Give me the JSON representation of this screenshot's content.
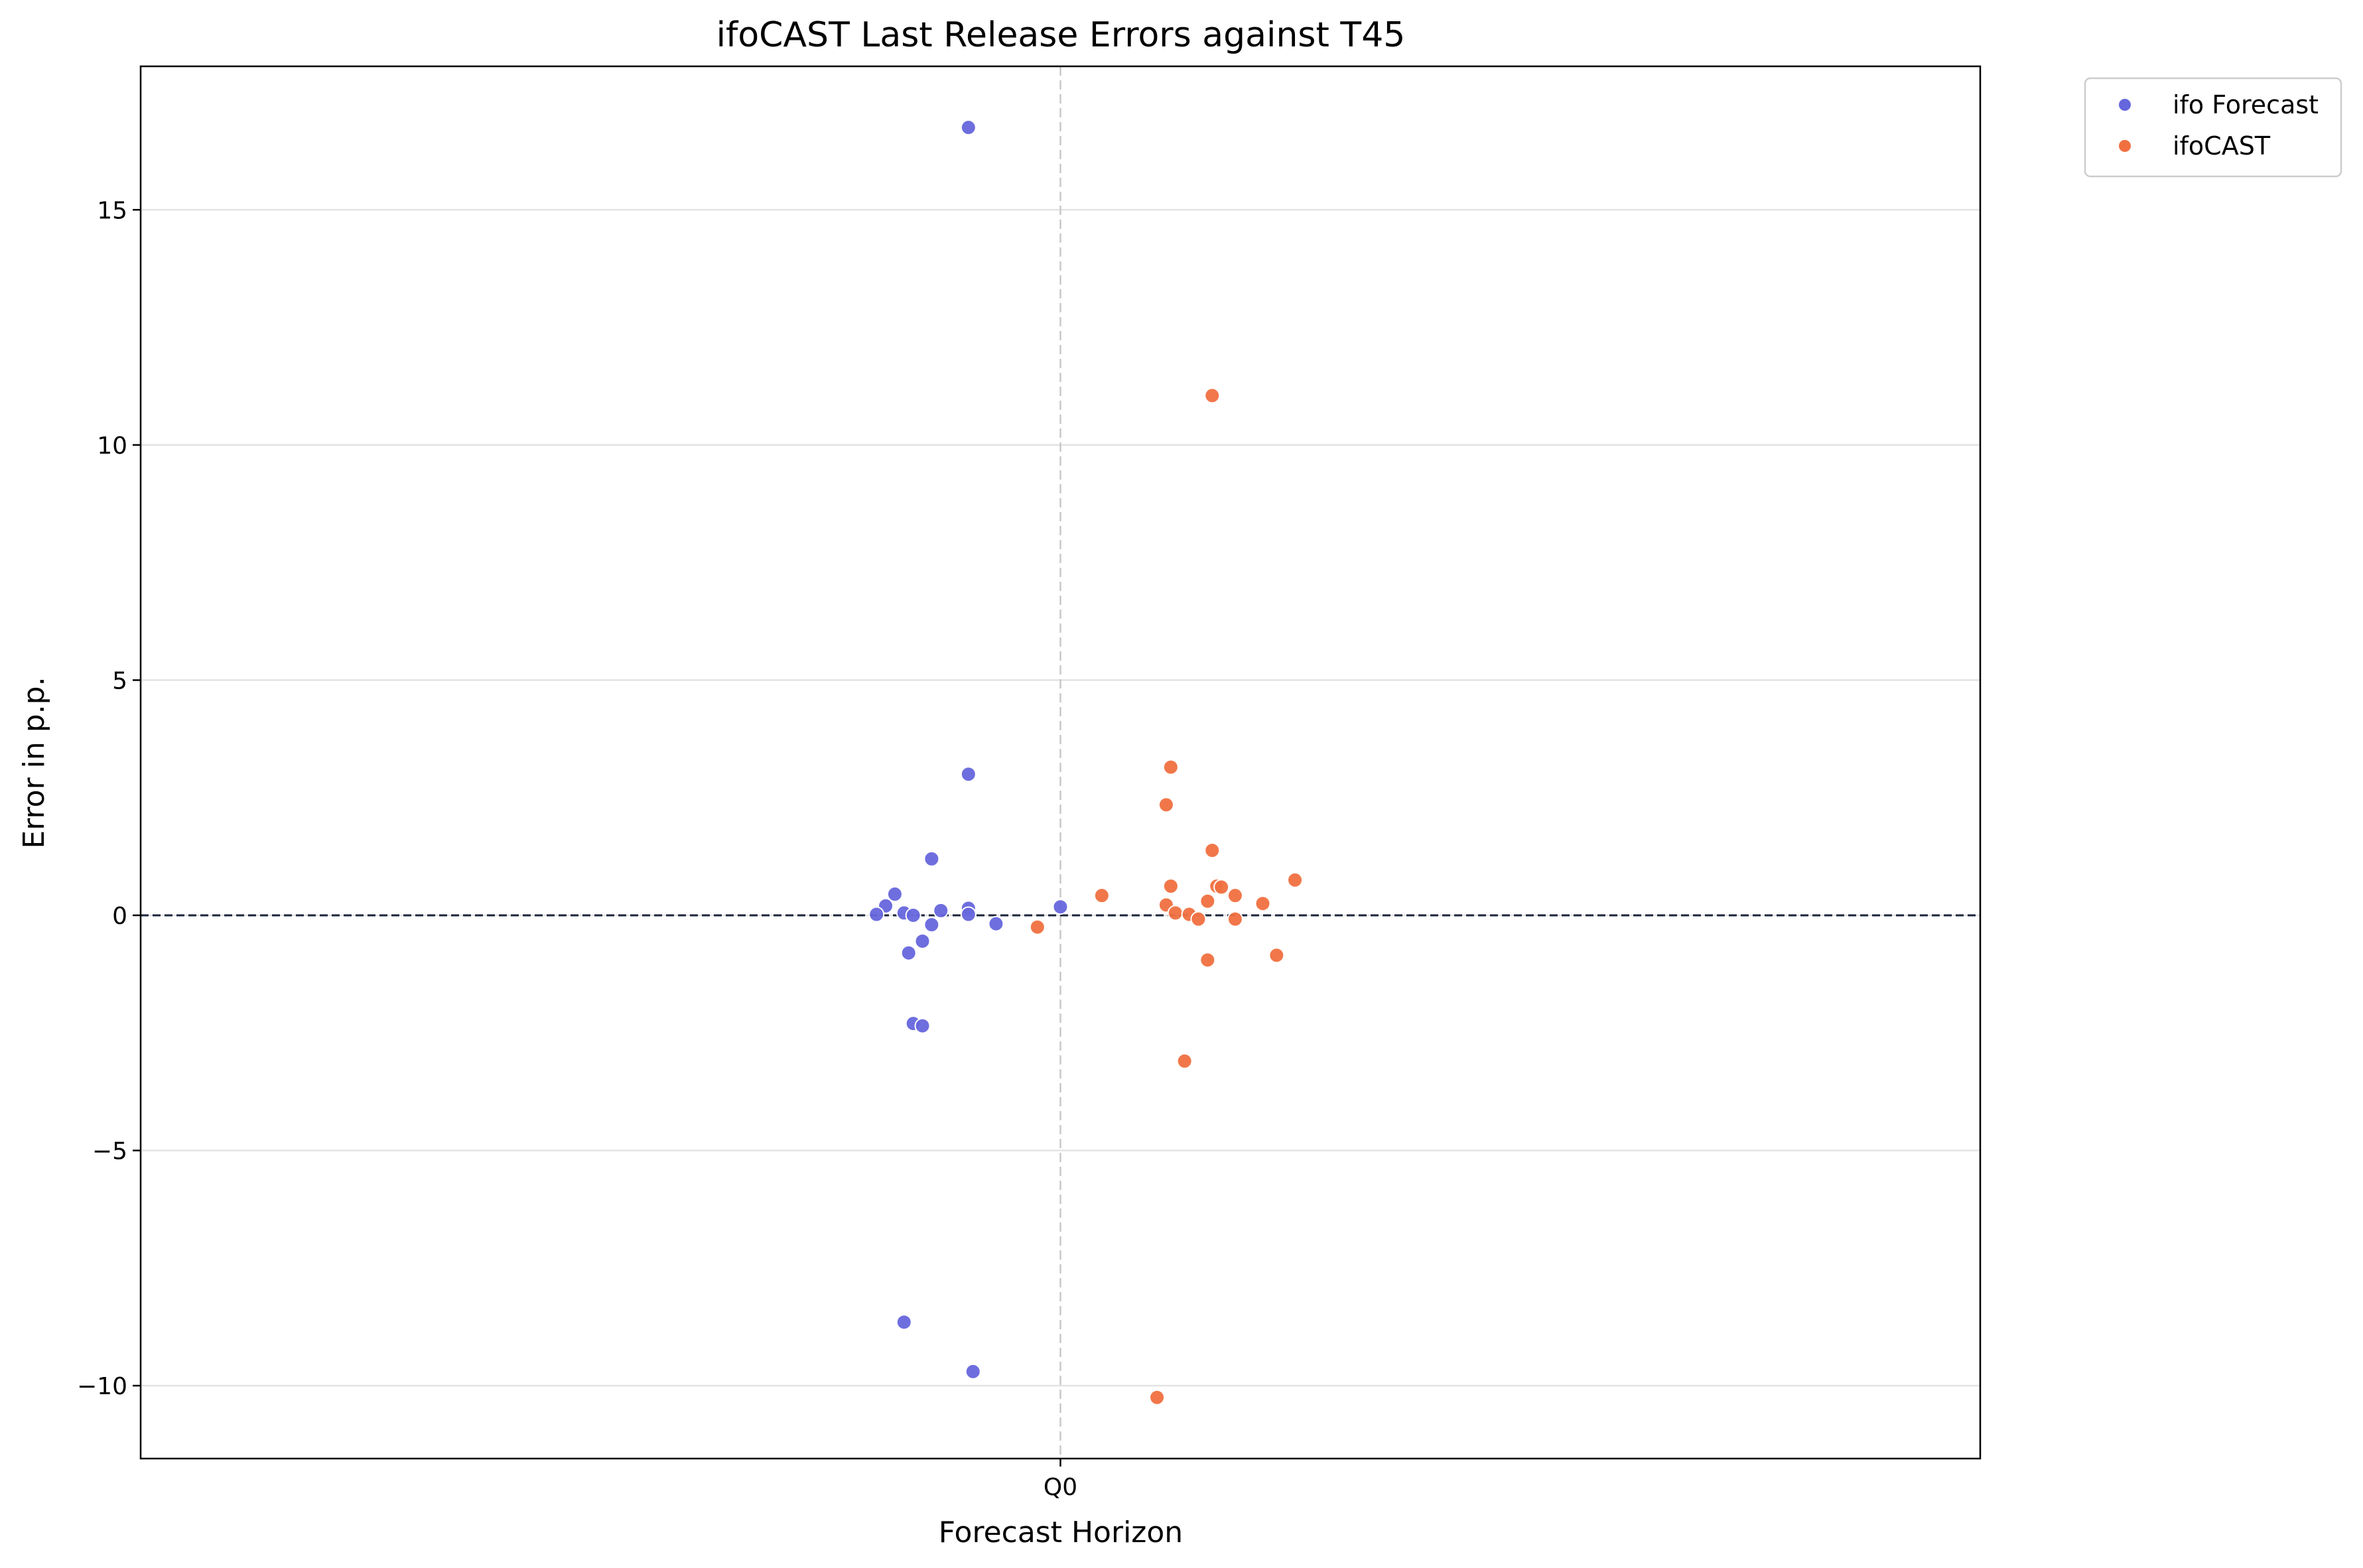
{
  "chart_data": {
    "type": "scatter",
    "title": "ifoCAST Last Release Errors against T45",
    "xlabel": "Forecast Horizon",
    "ylabel": "Error in p.p.",
    "categories": [
      "Q0"
    ],
    "ylim": [
      -11.55,
      18.05
    ],
    "yticks": [
      -10,
      -5,
      0,
      5,
      10,
      15
    ],
    "ytick_labels": [
      "−10",
      "−5",
      "0",
      "5",
      "10",
      "15"
    ],
    "grid": "horizontal",
    "zero_line": true,
    "legend_position": "outside-top-right",
    "series": [
      {
        "name": "ifo Forecast",
        "color": "#6666dd",
        "points": [
          {
            "x": -0.1,
            "y": 16.75
          },
          {
            "x": -0.1,
            "y": 3.0
          },
          {
            "x": -0.14,
            "y": 1.2
          },
          {
            "x": -0.18,
            "y": 0.45
          },
          {
            "x": -0.19,
            "y": 0.2
          },
          {
            "x": -0.2,
            "y": 0.02
          },
          {
            "x": -0.17,
            "y": 0.05
          },
          {
            "x": -0.16,
            "y": 0.0
          },
          {
            "x": -0.13,
            "y": 0.1
          },
          {
            "x": -0.1,
            "y": 0.15
          },
          {
            "x": -0.1,
            "y": 0.02
          },
          {
            "x": -0.07,
            "y": -0.18
          },
          {
            "x": -0.14,
            "y": -0.2
          },
          {
            "x": -0.15,
            "y": -0.55
          },
          {
            "x": -0.165,
            "y": -0.8
          },
          {
            "x": 0.0,
            "y": 0.18
          },
          {
            "x": -0.16,
            "y": -2.3
          },
          {
            "x": -0.15,
            "y": -2.35
          },
          {
            "x": -0.17,
            "y": -8.65
          },
          {
            "x": -0.095,
            "y": -9.7
          }
        ]
      },
      {
        "name": "ifoCAST",
        "color": "#f07040",
        "points": [
          {
            "x": 0.165,
            "y": 11.05
          },
          {
            "x": 0.12,
            "y": 3.15
          },
          {
            "x": 0.115,
            "y": 2.35
          },
          {
            "x": 0.165,
            "y": 1.38
          },
          {
            "x": 0.255,
            "y": 0.75
          },
          {
            "x": 0.12,
            "y": 0.62
          },
          {
            "x": 0.17,
            "y": 0.62
          },
          {
            "x": 0.175,
            "y": 0.6
          },
          {
            "x": 0.045,
            "y": 0.42
          },
          {
            "x": 0.19,
            "y": 0.42
          },
          {
            "x": 0.16,
            "y": 0.3
          },
          {
            "x": 0.22,
            "y": 0.25
          },
          {
            "x": 0.115,
            "y": 0.22
          },
          {
            "x": 0.125,
            "y": 0.05
          },
          {
            "x": 0.14,
            "y": 0.02
          },
          {
            "x": 0.15,
            "y": -0.08
          },
          {
            "x": 0.19,
            "y": -0.08
          },
          {
            "x": -0.025,
            "y": -0.25
          },
          {
            "x": 0.16,
            "y": -0.95
          },
          {
            "x": 0.235,
            "y": -0.85
          },
          {
            "x": 0.135,
            "y": -3.1
          },
          {
            "x": 0.105,
            "y": -10.25
          }
        ]
      }
    ]
  }
}
